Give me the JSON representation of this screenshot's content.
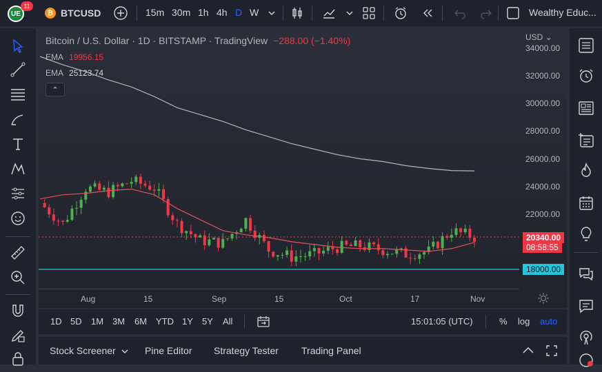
{
  "header": {
    "logo_text": "UE",
    "notification_count": "11",
    "coin_glyph": "₿",
    "symbol": "BTCUSD",
    "intervals": [
      "15m",
      "30m",
      "1h",
      "4h",
      "D",
      "W"
    ],
    "active_interval": "D",
    "account": "Wealthy Educ..."
  },
  "legend": {
    "title": "Bitcoin / U.S. Dollar · 1D · BITSTAMP · TradingView",
    "change": "−288.00 (−1.40%)",
    "ema_label": "EMA",
    "ema1_value": "19956.15",
    "ema2_value": "25123.74",
    "collapse_glyph": "⌃"
  },
  "price_axis": {
    "currency": "USD",
    "ticks": [
      "34000.00",
      "32000.00",
      "30000.00",
      "28000.00",
      "26000.00",
      "24000.00",
      "22000.00",
      "18000.00"
    ],
    "current_price": "20340.00",
    "countdown": "08:58:55",
    "level_price": "18000.00"
  },
  "time_axis": {
    "ticks": [
      "Aug",
      "15",
      "Sep",
      "15",
      "Oct",
      "17",
      "Nov"
    ]
  },
  "bottom_bar": {
    "ranges": [
      "1D",
      "5D",
      "1M",
      "3M",
      "6M",
      "YTD",
      "1Y",
      "5Y",
      "All"
    ],
    "clock": "15:01:05 (UTC)",
    "percent_label": "%",
    "log_label": "log",
    "auto_label": "auto"
  },
  "footer": {
    "stock_screener": "Stock Screener",
    "pine_editor": "Pine Editor",
    "strategy_tester": "Strategy Tester",
    "trading_panel": "Trading Panel"
  },
  "colors": {
    "up": "#26a69a",
    "up_bright": "#4caf50",
    "down": "#f23645",
    "ema_short": "#e8505b",
    "ema_long": "#b2b5be",
    "level": "#26c6da",
    "accent": "#2962ff"
  },
  "chart_data": {
    "type": "candlestick",
    "title": "Bitcoin / U.S. Dollar · 1D · BITSTAMP · TradingView",
    "ylim": [
      17000,
      34500
    ],
    "x": [
      "Jul 25",
      "Jul 30",
      "Aug 5",
      "Aug 10",
      "Aug 15",
      "Aug 20",
      "Aug 25",
      "Aug 31",
      "Sep 5",
      "Sep 10",
      "Sep 15",
      "Sep 20",
      "Sep 25",
      "Oct 1",
      "Oct 5",
      "Oct 10",
      "Oct 17",
      "Oct 22",
      "Oct 26",
      "Oct 31"
    ],
    "close": [
      22800,
      21300,
      23900,
      23600,
      24400,
      23900,
      21300,
      20100,
      19900,
      21600,
      19400,
      18900,
      19100,
      19600,
      19700,
      19400,
      19100,
      19300,
      20800,
      20340
    ],
    "series": [
      {
        "name": "EMA",
        "values": [
          23100,
          23400,
          23500,
          23700,
          23800,
          23400,
          22400,
          21600,
          20800,
          20500,
          20300,
          20000,
          19800,
          19600,
          19500,
          19500,
          19400,
          19300,
          19500,
          19956
        ]
      },
      {
        "name": "EMA",
        "values": [
          33400,
          32800,
          32300,
          31700,
          31200,
          30500,
          29700,
          29200,
          28700,
          28100,
          27600,
          27100,
          26700,
          26300,
          26000,
          25800,
          25500,
          25300,
          25150,
          25124
        ]
      }
    ],
    "horizontal_line": 18000,
    "last_price": 20340,
    "change": "−288.00 (−1.40%)"
  }
}
